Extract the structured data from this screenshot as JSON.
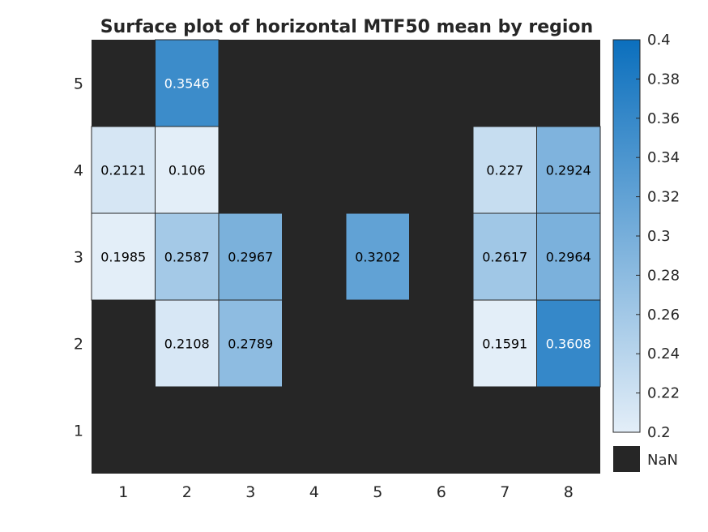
{
  "chart_data": {
    "type": "heatmap",
    "title": "Surface plot of horizontal MTF50 mean by region",
    "x": [
      1,
      2,
      3,
      4,
      5,
      6,
      7,
      8
    ],
    "y": [
      1,
      2,
      3,
      4,
      5
    ],
    "x_tick_labels": [
      "1",
      "2",
      "3",
      "4",
      "5",
      "6",
      "7",
      "8"
    ],
    "y_tick_labels": [
      "1",
      "2",
      "3",
      "4",
      "5"
    ],
    "z": [
      [
        null,
        null,
        null,
        null,
        null,
        null,
        null,
        null
      ],
      [
        null,
        0.2108,
        0.2789,
        null,
        null,
        null,
        0.1591,
        0.3608
      ],
      [
        0.1985,
        0.2587,
        0.2967,
        null,
        0.3202,
        null,
        0.2617,
        0.2964
      ],
      [
        0.2121,
        0.106,
        null,
        null,
        null,
        null,
        0.227,
        0.2924
      ],
      [
        null,
        0.3546,
        null,
        null,
        null,
        null,
        null,
        null
      ]
    ],
    "cell_labels": [
      [
        "",
        "",
        "",
        "",
        "",
        "",
        "",
        ""
      ],
      [
        "",
        "0.2108",
        "0.2789",
        "",
        "",
        "",
        "0.1591",
        "0.3608"
      ],
      [
        "0.1985",
        "0.2587",
        "0.2967",
        "",
        "0.3202",
        "",
        "0.2617",
        "0.2964"
      ],
      [
        "0.2121",
        "0.106",
        "",
        "",
        "",
        "",
        "0.227",
        "0.2924"
      ],
      [
        "",
        "0.3546",
        "",
        "",
        "",
        "",
        "",
        ""
      ]
    ],
    "colorbar": {
      "range": [
        0.2,
        0.4
      ],
      "ticks": [
        "0.4",
        "0.38",
        "0.36",
        "0.34",
        "0.32",
        "0.3",
        "0.28",
        "0.26",
        "0.24",
        "0.22",
        "0.2"
      ],
      "tick_values": [
        0.4,
        0.38,
        0.36,
        0.34,
        0.32,
        0.3,
        0.28,
        0.26,
        0.24,
        0.22,
        0.2
      ],
      "nan_label": "NaN"
    },
    "colors": {
      "low": "#e3eef8",
      "high": "#0b6fbd",
      "nan": "#262626",
      "grid": "#262626",
      "text_dark": "#000000",
      "text_light": "#ffffff"
    }
  }
}
